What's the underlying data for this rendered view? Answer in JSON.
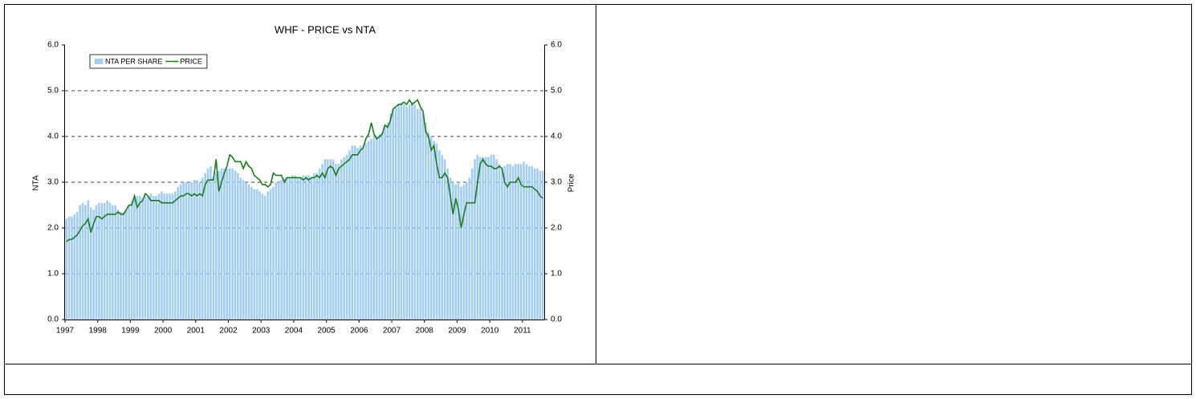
{
  "chart_data": {
    "type": "bar",
    "title": "WHF - PRICE vs NTA",
    "ylabel": "NTA",
    "y2label": "Price",
    "categories": [
      "1997",
      null,
      null,
      null,
      null,
      null,
      null,
      null,
      null,
      null,
      null,
      null,
      "1998",
      null,
      null,
      null,
      null,
      null,
      null,
      null,
      null,
      null,
      null,
      null,
      "1999",
      null,
      null,
      null,
      null,
      null,
      null,
      null,
      null,
      null,
      null,
      null,
      "2000",
      null,
      null,
      null,
      null,
      null,
      null,
      null,
      null,
      null,
      null,
      null,
      "2001",
      null,
      null,
      null,
      null,
      null,
      null,
      null,
      null,
      null,
      null,
      null,
      "2002",
      null,
      null,
      null,
      null,
      null,
      null,
      null,
      null,
      null,
      null,
      null,
      "2003",
      null,
      null,
      null,
      null,
      null,
      null,
      null,
      null,
      null,
      null,
      null,
      "2004",
      null,
      null,
      null,
      null,
      null,
      null,
      null,
      null,
      null,
      null,
      null,
      "2005",
      null,
      null,
      null,
      null,
      null,
      null,
      null,
      null,
      null,
      null,
      null,
      "2006",
      null,
      null,
      null,
      null,
      null,
      null,
      null,
      null,
      null,
      null,
      null,
      "2007",
      null,
      null,
      null,
      null,
      null,
      null,
      null,
      null,
      null,
      null,
      null,
      "2008",
      null,
      null,
      null,
      null,
      null,
      null,
      null,
      null,
      null,
      null,
      null,
      "2009",
      null,
      null,
      null,
      null,
      null,
      null,
      null,
      null,
      null,
      null,
      null,
      "2010",
      null,
      null,
      null,
      null,
      null,
      null,
      null,
      null,
      null,
      null,
      null,
      "2011",
      null,
      null,
      null,
      null,
      null,
      null,
      null
    ],
    "series": [
      {
        "name": "NTA PER SHARE",
        "type": "bar",
        "color": "#a4cdf5",
        "values": [
          2.2,
          2.25,
          2.25,
          2.3,
          2.35,
          2.5,
          2.55,
          2.5,
          2.6,
          2.45,
          2.4,
          2.5,
          2.55,
          2.55,
          2.55,
          2.6,
          2.55,
          2.5,
          2.5,
          2.4,
          2.35,
          2.35,
          2.4,
          2.5,
          2.6,
          2.7,
          2.7,
          2.7,
          2.65,
          2.7,
          2.7,
          2.75,
          2.7,
          2.7,
          2.75,
          2.8,
          2.75,
          2.75,
          2.75,
          2.75,
          2.8,
          2.9,
          2.95,
          3.0,
          3.0,
          3.0,
          3.0,
          3.05,
          3.05,
          3.0,
          3.1,
          3.2,
          3.3,
          3.35,
          3.1,
          3.2,
          3.25,
          3.3,
          3.3,
          3.3,
          3.3,
          3.3,
          3.25,
          3.2,
          3.1,
          3.05,
          3.0,
          2.95,
          2.9,
          2.85,
          2.85,
          2.8,
          2.75,
          2.7,
          2.8,
          2.85,
          2.9,
          3.0,
          3.0,
          3.05,
          3.1,
          3.1,
          3.1,
          3.15,
          3.15,
          3.1,
          3.1,
          3.15,
          3.15,
          3.15,
          3.1,
          3.2,
          3.2,
          3.3,
          3.4,
          3.5,
          3.5,
          3.5,
          3.5,
          3.4,
          3.4,
          3.5,
          3.55,
          3.6,
          3.7,
          3.8,
          3.8,
          3.75,
          3.8,
          3.8,
          3.85,
          3.9,
          3.95,
          4.0,
          4.0,
          4.05,
          4.1,
          4.2,
          4.3,
          4.5,
          4.6,
          4.65,
          4.7,
          4.75,
          4.7,
          4.65,
          4.7,
          4.75,
          4.7,
          4.6,
          4.6,
          4.5,
          4.3,
          4.1,
          4.0,
          3.9,
          3.85,
          3.7,
          3.6,
          3.5,
          3.3,
          3.1,
          3.0,
          2.95,
          3.0,
          2.9,
          2.95,
          3.0,
          3.1,
          3.3,
          3.5,
          3.6,
          3.55,
          3.55,
          3.55,
          3.55,
          3.6,
          3.6,
          3.5,
          3.4,
          3.3,
          3.35,
          3.4,
          3.4,
          3.35,
          3.4,
          3.4,
          3.4,
          3.45,
          3.4,
          3.35,
          3.35,
          3.3,
          3.3,
          3.25,
          3.25
        ]
      },
      {
        "name": "PRICE",
        "type": "line",
        "color": "#1b7d1b",
        "axis": "y2",
        "values": [
          1.7,
          1.75,
          1.75,
          1.8,
          1.85,
          1.95,
          2.05,
          2.1,
          2.2,
          1.9,
          2.1,
          2.25,
          2.25,
          2.2,
          2.25,
          2.3,
          2.3,
          2.3,
          2.3,
          2.35,
          2.3,
          2.3,
          2.4,
          2.5,
          2.5,
          2.7,
          2.45,
          2.55,
          2.6,
          2.75,
          2.7,
          2.6,
          2.6,
          2.6,
          2.6,
          2.55,
          2.55,
          2.55,
          2.55,
          2.55,
          2.6,
          2.65,
          2.7,
          2.7,
          2.75,
          2.75,
          2.7,
          2.75,
          2.7,
          2.75,
          2.7,
          2.95,
          3.05,
          3.05,
          3.05,
          3.5,
          2.8,
          3.0,
          3.2,
          3.35,
          3.6,
          3.55,
          3.45,
          3.45,
          3.45,
          3.3,
          3.45,
          3.35,
          3.3,
          3.15,
          3.1,
          3.05,
          2.95,
          2.95,
          2.9,
          2.95,
          3.2,
          3.15,
          3.15,
          3.15,
          3.0,
          3.1,
          3.1,
          3.1,
          3.1,
          3.1,
          3.1,
          3.05,
          3.1,
          3.05,
          3.1,
          3.1,
          3.15,
          3.1,
          3.2,
          3.1,
          3.3,
          3.35,
          3.3,
          3.15,
          3.3,
          3.35,
          3.4,
          3.45,
          3.5,
          3.6,
          3.6,
          3.6,
          3.7,
          3.75,
          3.95,
          4.05,
          4.3,
          4.05,
          3.95,
          4.0,
          4.05,
          4.25,
          4.2,
          4.35,
          4.6,
          4.65,
          4.7,
          4.7,
          4.75,
          4.7,
          4.8,
          4.7,
          4.75,
          4.8,
          4.65,
          4.55,
          4.1,
          4.0,
          3.7,
          3.8,
          3.4,
          3.1,
          3.1,
          3.2,
          3.1,
          2.7,
          2.3,
          2.65,
          2.4,
          2.0,
          2.3,
          2.55,
          2.55,
          2.55,
          2.55,
          3.0,
          3.4,
          3.5,
          3.4,
          3.35,
          3.35,
          3.3,
          3.3,
          3.35,
          3.3,
          3.0,
          2.9,
          3.0,
          3.0,
          3.0,
          3.1,
          2.95,
          2.9,
          2.9,
          2.9,
          2.9,
          2.85,
          2.8,
          2.7,
          2.65
        ]
      }
    ],
    "ylim": [
      0,
      6
    ],
    "yticks": [
      {
        "value": 0,
        "label": "0.0"
      },
      {
        "value": 1,
        "label": "1.0"
      },
      {
        "value": 2,
        "label": "2.0"
      },
      {
        "value": 3,
        "label": "3.0"
      },
      {
        "value": 4,
        "label": "4.0"
      },
      {
        "value": 5,
        "label": "5.0"
      },
      {
        "value": 6,
        "label": "6.0"
      }
    ],
    "y2lim": [
      0,
      6
    ],
    "y2ticks": [
      {
        "value": 0,
        "label": "0.0"
      },
      {
        "value": 1,
        "label": "1.0"
      },
      {
        "value": 2,
        "label": "2.0"
      },
      {
        "value": 3,
        "label": "3.0"
      },
      {
        "value": 4,
        "label": "4.0"
      },
      {
        "value": 5,
        "label": "5.0"
      },
      {
        "value": 6,
        "label": "6.0"
      }
    ],
    "grid": true,
    "legend": "upper left"
  }
}
